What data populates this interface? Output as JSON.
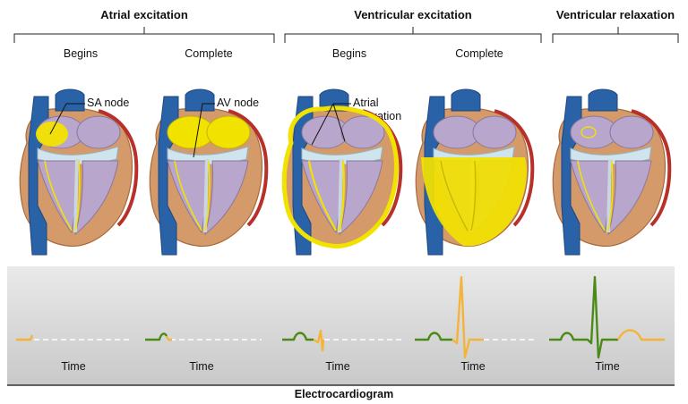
{
  "phases": [
    {
      "title": "Atrial excitation"
    },
    {
      "title": "Ventricular excitation"
    },
    {
      "title": "Ventricular relaxation"
    }
  ],
  "sub_labels": [
    "Begins",
    "Complete",
    "Begins",
    "Complete"
  ],
  "callouts": {
    "sa_node": "SA node",
    "av_node": "AV node",
    "atrial_relaxation_line1": "Atrial",
    "atrial_relaxation_line2": "relaxation"
  },
  "time_label": "Time",
  "ecg_caption": "Electrocardiogram",
  "colors": {
    "excitation": "#f2e200",
    "ecg_recorded": "#4a8a16",
    "ecg_current": "#f4b43a",
    "vena_cava": "#2a62a8",
    "myocardium": "#d49a6a",
    "chamber": "#b9a6cc",
    "valve": "#cfe4ec"
  }
}
